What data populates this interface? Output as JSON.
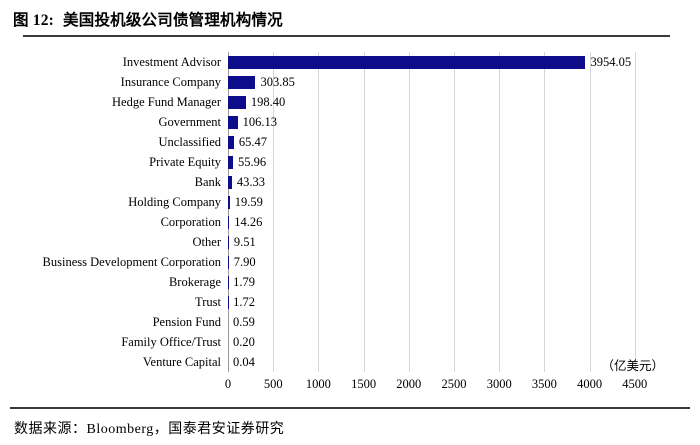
{
  "figure": {
    "label": "图 12:",
    "title": "美国投机级公司债管理机构情况"
  },
  "chart_data": {
    "type": "bar",
    "orientation": "horizontal",
    "title": "美国投机级公司债管理机构情况",
    "unit_label": "（亿美元）",
    "categories": [
      "Investment Advisor",
      "Insurance Company",
      "Hedge Fund Manager",
      "Government",
      "Unclassified",
      "Private Equity",
      "Bank",
      "Holding Company",
      "Corporation",
      "Other",
      "Business Development Corporation",
      "Brokerage",
      "Trust",
      "Pension Fund",
      "Family Office/Trust",
      "Venture Capital"
    ],
    "values": [
      3954.05,
      303.85,
      198.4,
      106.13,
      65.47,
      55.96,
      43.33,
      19.59,
      14.26,
      9.51,
      7.9,
      1.79,
      1.72,
      0.59,
      0.2,
      0.04
    ],
    "value_labels": [
      "3954.05",
      "303.85",
      "198.40",
      "106.13",
      "65.47",
      "55.96",
      "43.33",
      "19.59",
      "14.26",
      "9.51",
      "7.90",
      "1.79",
      "1.72",
      "0.59",
      "0.20",
      "0.04"
    ],
    "x_ticks": [
      0,
      500,
      1000,
      1500,
      2000,
      2500,
      3000,
      3500,
      4000,
      4500
    ],
    "xlim": [
      0,
      4500
    ],
    "grid": true,
    "legend": false,
    "bar_color": "#0D0D8B",
    "gridline_color": "#D6D6D6",
    "axis_line_color": "#9A9A9A"
  },
  "footer": {
    "source_text": "数据来源：Bloomberg，国泰君安证券研究"
  }
}
